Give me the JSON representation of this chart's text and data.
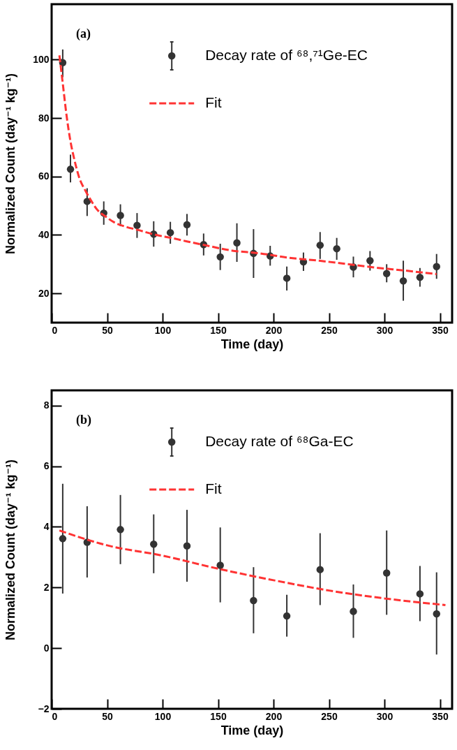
{
  "chart_data": [
    {
      "type": "scatter",
      "xlabel": "Time (day)",
      "ylabel": "Normalized Count (day⁻¹ kg⁻¹)",
      "annotations": [
        "(a)"
      ],
      "legend": "top right",
      "xlim": [
        0,
        361
      ],
      "xticks": [
        0,
        50,
        100,
        150,
        200,
        250,
        300,
        350
      ],
      "ylim": [
        10,
        119
      ],
      "yticks": [
        20,
        40,
        60,
        80,
        100
      ],
      "series": [
        {
          "name": "Decay rate of ⁶⁸,⁷¹Ge-EC",
          "type": "scatter",
          "marker": "circle",
          "color": "#333333",
          "x": [
            10,
            17,
            32,
            47,
            62,
            77,
            92,
            107,
            122,
            137,
            152,
            167,
            182,
            197,
            212,
            227,
            242,
            257,
            272,
            287,
            302,
            317,
            332,
            347
          ],
          "values": [
            99,
            62.5,
            51.5,
            47.5,
            46.7,
            43.3,
            40.3,
            40.8,
            43.5,
            36.7,
            32.5,
            37.3,
            33.7,
            32.8,
            25.2,
            30.8,
            36.5,
            35.3,
            29,
            31.2,
            26.8,
            24.3,
            25.5,
            29.2
          ],
          "errors": [
            [
              94,
              103.5
            ],
            [
              58,
              67.5
            ],
            [
              46.5,
              56
            ],
            [
              43.5,
              51.5
            ],
            [
              43,
              50.5
            ],
            [
              39,
              47.5
            ],
            [
              36,
              44.7
            ],
            [
              37,
              44.5
            ],
            [
              39.8,
              47.2
            ],
            [
              33,
              40.5
            ],
            [
              28,
              37
            ],
            [
              30.8,
              44
            ],
            [
              25.3,
              42
            ],
            [
              29.5,
              36.3
            ],
            [
              21,
              29.2
            ],
            [
              27.7,
              34
            ],
            [
              31.8,
              41
            ],
            [
              31.5,
              39
            ],
            [
              25.5,
              32.6
            ],
            [
              27.8,
              34.5
            ],
            [
              23.8,
              30
            ],
            [
              17.5,
              31.2
            ],
            [
              22.3,
              28.7
            ],
            [
              25,
              33.5
            ]
          ]
        },
        {
          "name": "Fit",
          "type": "line",
          "line_style": "dashed",
          "color": "#ff3333",
          "x": [
            7,
            10,
            13.6,
            17,
            20,
            25,
            30.7,
            36,
            41,
            49,
            57,
            67,
            78,
            92,
            109,
            122,
            136,
            162,
            188,
            214,
            241,
            267,
            293,
            319,
            347
          ],
          "values": [
            101.5,
            92,
            80.5,
            72,
            66.6,
            59.5,
            55,
            51.5,
            48.7,
            46.2,
            44.2,
            42.8,
            41.7,
            40.2,
            38.9,
            37.8,
            36.7,
            34.7,
            33.7,
            32.2,
            31.2,
            30,
            28.8,
            27.8,
            26.6
          ]
        }
      ]
    },
    {
      "type": "scatter",
      "xlabel": "Time (day)",
      "ylabel": "Normalized Count (day⁻¹ kg⁻¹)",
      "annotations": [
        "(b)"
      ],
      "legend": "top right",
      "xlim": [
        0,
        361
      ],
      "xticks": [
        0,
        50,
        100,
        150,
        200,
        250,
        300,
        350
      ],
      "ylim": [
        -2,
        8.5
      ],
      "yticks": [
        {
          "value": -2,
          "label": "−2"
        },
        0,
        2,
        4,
        6,
        8
      ],
      "series": [
        {
          "name": "Decay rate of ⁶⁸Ga-EC",
          "type": "scatter",
          "marker": "circle",
          "color": "#333333",
          "x": [
            10,
            32,
            62,
            92,
            122,
            152,
            182,
            212,
            242,
            272,
            302,
            332,
            347
          ],
          "values": [
            3.61,
            3.49,
            3.91,
            3.43,
            3.37,
            2.73,
            1.57,
            1.06,
            2.59,
            1.21,
            2.48,
            1.79,
            1.13
          ],
          "errors": [
            [
              1.8,
              5.42
            ],
            [
              2.33,
              4.68
            ],
            [
              2.77,
              5.05
            ],
            [
              2.47,
              4.41
            ],
            [
              2.19,
              4.56
            ],
            [
              1.51,
              3.98
            ],
            [
              0.49,
              2.67
            ],
            [
              0.38,
              1.76
            ],
            [
              1.42,
              3.79
            ],
            [
              0.34,
              2.1
            ],
            [
              1.1,
              3.88
            ],
            [
              0.89,
              2.71
            ],
            [
              -0.21,
              2.5
            ]
          ]
        },
        {
          "name": "Fit",
          "type": "line",
          "line_style": "dashed",
          "color": "#ff3333",
          "x": [
            7,
            50,
            100,
            150,
            200,
            250,
            300,
            355
          ],
          "values": [
            3.88,
            3.39,
            3.05,
            2.62,
            2.24,
            1.9,
            1.64,
            1.42
          ]
        }
      ]
    }
  ]
}
